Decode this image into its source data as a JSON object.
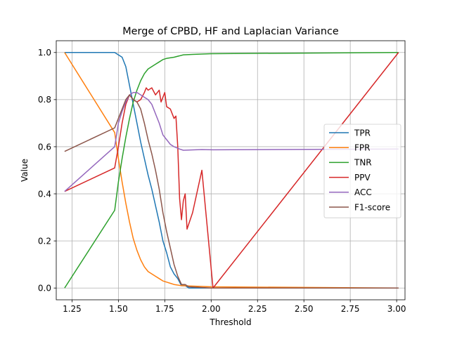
{
  "chart_data": {
    "type": "line",
    "title": "Merge of CPBD, HF and Laplacian Variance",
    "xlabel": "Threshold",
    "ylabel": "Value",
    "xlim": [
      1.165,
      3.045
    ],
    "ylim": [
      -0.05,
      1.05
    ],
    "xticks": [
      1.25,
      1.5,
      1.75,
      2.0,
      2.25,
      2.5,
      2.75,
      3.0
    ],
    "xtick_labels": [
      "1.25",
      "1.50",
      "1.75",
      "2.00",
      "2.25",
      "2.50",
      "2.75",
      "3.00"
    ],
    "yticks": [
      0.0,
      0.2,
      0.4,
      0.6,
      0.8,
      1.0
    ],
    "ytick_labels": [
      "0.0",
      "0.2",
      "0.4",
      "0.6",
      "0.8",
      "1.0"
    ],
    "grid": true,
    "legend_position": "center-right",
    "series": [
      {
        "name": "TPR",
        "color": "#1f77b4",
        "points": [
          [
            1.21,
            1.0
          ],
          [
            1.48,
            1.0
          ],
          [
            1.5,
            0.99
          ],
          [
            1.52,
            0.98
          ],
          [
            1.54,
            0.94
          ],
          [
            1.56,
            0.86
          ],
          [
            1.58,
            0.78
          ],
          [
            1.6,
            0.7
          ],
          [
            1.62,
            0.62
          ],
          [
            1.64,
            0.55
          ],
          [
            1.66,
            0.48
          ],
          [
            1.68,
            0.42
          ],
          [
            1.7,
            0.35
          ],
          [
            1.72,
            0.28
          ],
          [
            1.74,
            0.2
          ],
          [
            1.76,
            0.15
          ],
          [
            1.78,
            0.09
          ],
          [
            1.8,
            0.06
          ],
          [
            1.82,
            0.04
          ],
          [
            1.84,
            0.01
          ],
          [
            1.86,
            0.01
          ],
          [
            1.88,
            0.0
          ],
          [
            2.0,
            0.0
          ],
          [
            3.01,
            0.0
          ]
        ]
      },
      {
        "name": "FPR",
        "color": "#ff7f0e",
        "points": [
          [
            1.21,
            1.0
          ],
          [
            1.48,
            0.66
          ],
          [
            1.5,
            0.55
          ],
          [
            1.52,
            0.45
          ],
          [
            1.54,
            0.36
          ],
          [
            1.56,
            0.28
          ],
          [
            1.58,
            0.21
          ],
          [
            1.6,
            0.16
          ],
          [
            1.62,
            0.12
          ],
          [
            1.64,
            0.09
          ],
          [
            1.66,
            0.07
          ],
          [
            1.68,
            0.06
          ],
          [
            1.7,
            0.05
          ],
          [
            1.72,
            0.04
          ],
          [
            1.74,
            0.03
          ],
          [
            1.76,
            0.025
          ],
          [
            1.78,
            0.02
          ],
          [
            1.8,
            0.015
          ],
          [
            1.84,
            0.01
          ],
          [
            1.9,
            0.008
          ],
          [
            2.0,
            0.005
          ],
          [
            3.01,
            0.0
          ]
        ]
      },
      {
        "name": "TNR",
        "color": "#2ca02c",
        "points": [
          [
            1.21,
            0.0
          ],
          [
            1.48,
            0.33
          ],
          [
            1.5,
            0.45
          ],
          [
            1.52,
            0.55
          ],
          [
            1.54,
            0.64
          ],
          [
            1.56,
            0.72
          ],
          [
            1.58,
            0.79
          ],
          [
            1.6,
            0.84
          ],
          [
            1.62,
            0.88
          ],
          [
            1.64,
            0.91
          ],
          [
            1.66,
            0.93
          ],
          [
            1.68,
            0.94
          ],
          [
            1.7,
            0.95
          ],
          [
            1.72,
            0.96
          ],
          [
            1.74,
            0.97
          ],
          [
            1.76,
            0.975
          ],
          [
            1.8,
            0.98
          ],
          [
            1.85,
            0.99
          ],
          [
            1.9,
            0.992
          ],
          [
            2.0,
            0.995
          ],
          [
            3.01,
            1.0
          ]
        ]
      },
      {
        "name": "PPV",
        "color": "#d62728",
        "points": [
          [
            1.21,
            0.41
          ],
          [
            1.48,
            0.51
          ],
          [
            1.5,
            0.6
          ],
          [
            1.52,
            0.7
          ],
          [
            1.54,
            0.78
          ],
          [
            1.56,
            0.82
          ],
          [
            1.58,
            0.8
          ],
          [
            1.6,
            0.79
          ],
          [
            1.62,
            0.8
          ],
          [
            1.64,
            0.83
          ],
          [
            1.65,
            0.85
          ],
          [
            1.66,
            0.84
          ],
          [
            1.68,
            0.85
          ],
          [
            1.7,
            0.82
          ],
          [
            1.72,
            0.84
          ],
          [
            1.73,
            0.79
          ],
          [
            1.75,
            0.83
          ],
          [
            1.76,
            0.77
          ],
          [
            1.78,
            0.76
          ],
          [
            1.8,
            0.72
          ],
          [
            1.81,
            0.73
          ],
          [
            1.82,
            0.6
          ],
          [
            1.83,
            0.38
          ],
          [
            1.84,
            0.29
          ],
          [
            1.85,
            0.37
          ],
          [
            1.86,
            0.4
          ],
          [
            1.87,
            0.25
          ],
          [
            1.9,
            0.32
          ],
          [
            1.95,
            0.5
          ],
          [
            2.01,
            0.0
          ],
          [
            3.01,
            1.0
          ]
        ]
      },
      {
        "name": "ACC",
        "color": "#9467bd",
        "points": [
          [
            1.21,
            0.41
          ],
          [
            1.48,
            0.6
          ],
          [
            1.5,
            0.7
          ],
          [
            1.52,
            0.75
          ],
          [
            1.54,
            0.79
          ],
          [
            1.56,
            0.82
          ],
          [
            1.58,
            0.83
          ],
          [
            1.6,
            0.83
          ],
          [
            1.62,
            0.82
          ],
          [
            1.64,
            0.81
          ],
          [
            1.66,
            0.8
          ],
          [
            1.68,
            0.78
          ],
          [
            1.7,
            0.74
          ],
          [
            1.72,
            0.7
          ],
          [
            1.74,
            0.65
          ],
          [
            1.76,
            0.63
          ],
          [
            1.78,
            0.61
          ],
          [
            1.8,
            0.6
          ],
          [
            1.83,
            0.59
          ],
          [
            1.85,
            0.585
          ],
          [
            1.95,
            0.588
          ],
          [
            2.01,
            0.587
          ],
          [
            3.01,
            0.59
          ]
        ]
      },
      {
        "name": "F1-score",
        "color": "#8c564b",
        "points": [
          [
            1.21,
            0.58
          ],
          [
            1.48,
            0.68
          ],
          [
            1.5,
            0.72
          ],
          [
            1.52,
            0.76
          ],
          [
            1.54,
            0.8
          ],
          [
            1.56,
            0.82
          ],
          [
            1.58,
            0.8
          ],
          [
            1.6,
            0.79
          ],
          [
            1.62,
            0.76
          ],
          [
            1.64,
            0.7
          ],
          [
            1.66,
            0.63
          ],
          [
            1.68,
            0.57
          ],
          [
            1.7,
            0.5
          ],
          [
            1.72,
            0.42
          ],
          [
            1.74,
            0.32
          ],
          [
            1.76,
            0.24
          ],
          [
            1.78,
            0.17
          ],
          [
            1.8,
            0.1
          ],
          [
            1.82,
            0.05
          ],
          [
            1.84,
            0.015
          ],
          [
            1.86,
            0.015
          ],
          [
            1.88,
            0.005
          ],
          [
            2.0,
            0.0
          ],
          [
            3.01,
            0.0
          ]
        ]
      }
    ]
  }
}
